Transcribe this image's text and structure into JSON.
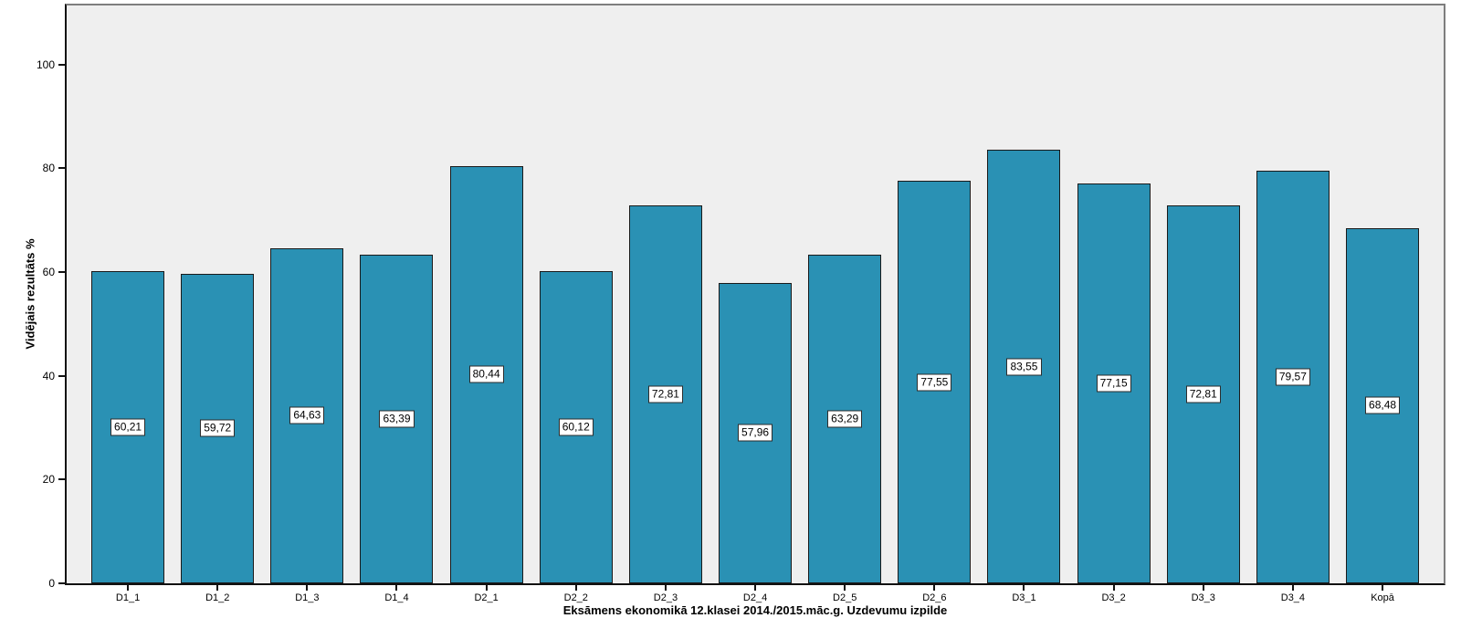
{
  "chart_data": {
    "type": "bar",
    "title": "",
    "xlabel": "Eksāmens ekonomikā 12.klasei 2014./2015.māc.g. Uzdevumu izpilde",
    "ylabel": "Vidējais rezultāts %",
    "categories": [
      "D1_1",
      "D1_2",
      "D1_3",
      "D1_4",
      "D2_1",
      "D2_2",
      "D2_3",
      "D2_4",
      "D2_5",
      "D2_6",
      "D3_1",
      "D3_2",
      "D3_3",
      "D3_4",
      "Kopā"
    ],
    "values": [
      60.21,
      59.72,
      64.63,
      63.39,
      80.44,
      60.12,
      72.81,
      57.96,
      63.29,
      77.55,
      83.55,
      77.15,
      72.81,
      79.57,
      68.48
    ],
    "value_labels": [
      "60,21",
      "59,72",
      "64,63",
      "63,39",
      "80,44",
      "60,12",
      "72,81",
      "57,96",
      "63,29",
      "77,55",
      "83,55",
      "77,15",
      "72,81",
      "79,57",
      "68,48"
    ],
    "yticks": [
      0,
      20,
      40,
      60,
      80,
      100
    ],
    "ytick_labels": [
      "0",
      "20",
      "40",
      "60",
      "80",
      "100"
    ],
    "ylim": [
      0,
      111.4
    ],
    "grid": false,
    "legend_position": "none",
    "decimal_separator": ",",
    "colors": {
      "bar_fill": "#2A91B4",
      "bar_border": "#1A1A1A",
      "plot_bg": "#EFEFEF",
      "label_box_bg": "#FFFFFF",
      "label_box_border": "#2B2B2B",
      "axis_color": "#111111",
      "frame_color": "#7E7E7E",
      "page_bg": "#FFFFFF"
    }
  }
}
